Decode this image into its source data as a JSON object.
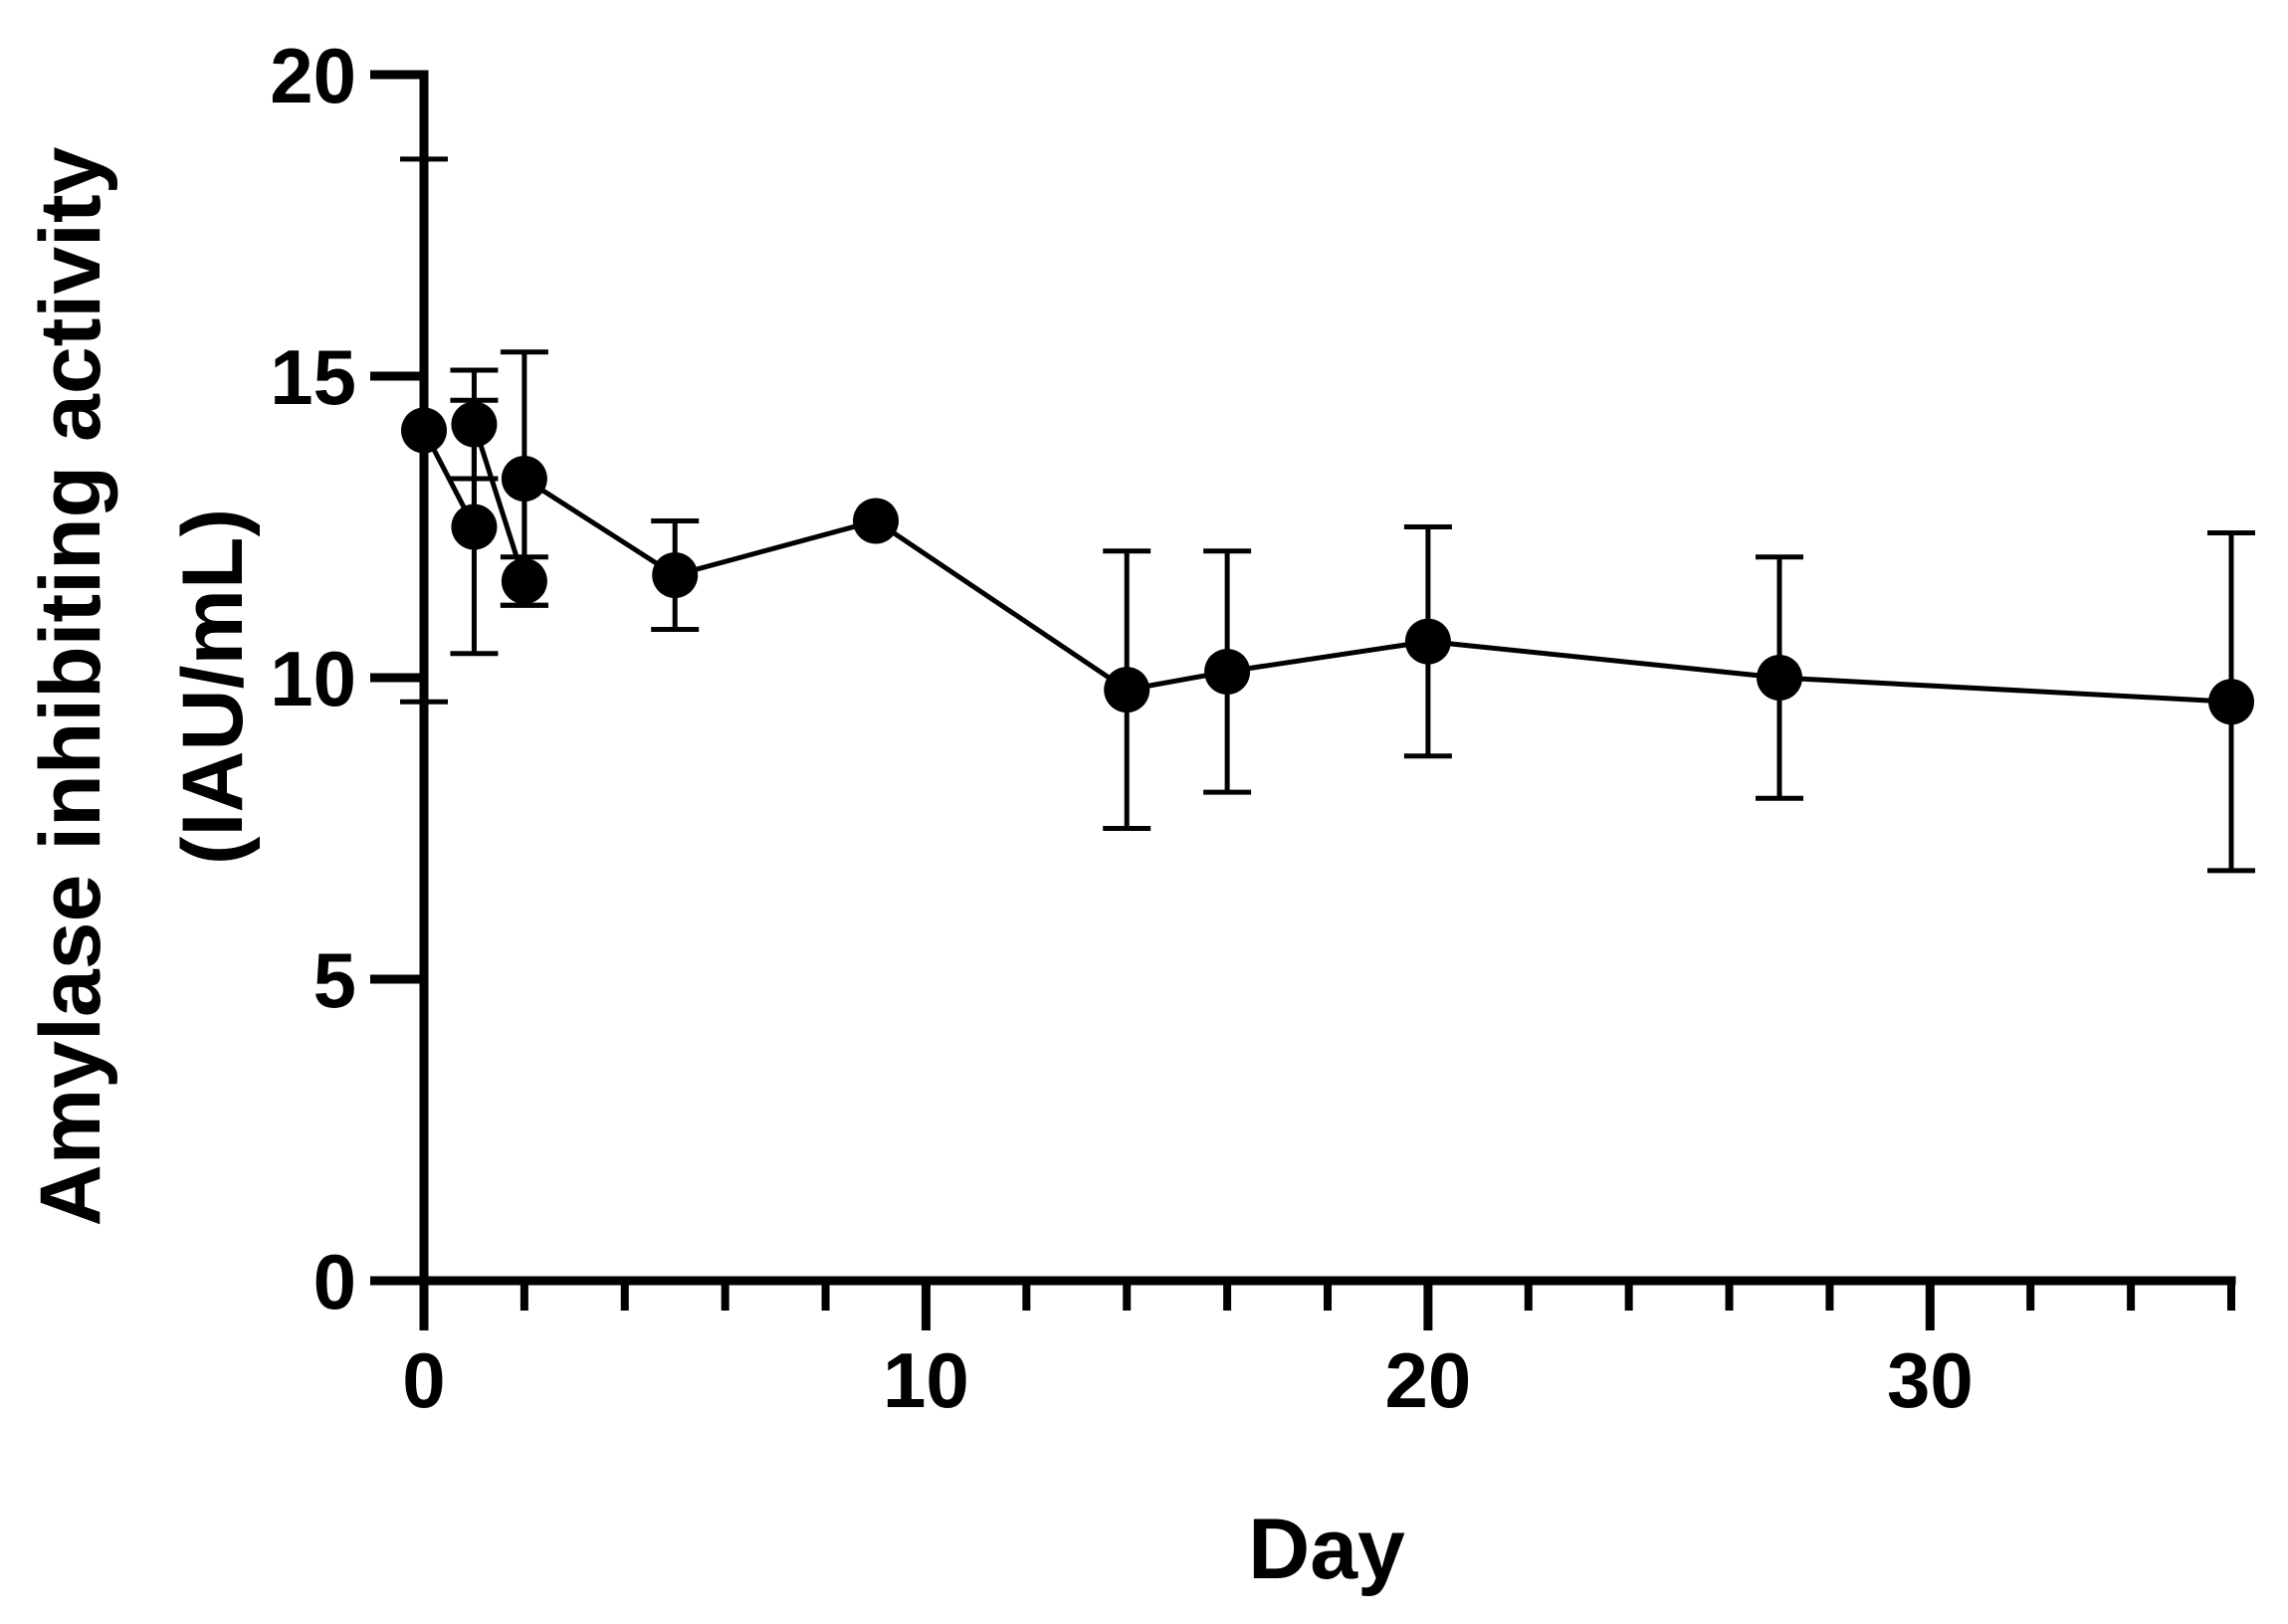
{
  "chart_data": {
    "type": "line",
    "title": "",
    "xlabel": "Day",
    "ylabel_line1": "Amylase inhibiting activity",
    "ylabel_line2": "(IAU/mL)",
    "xlim": [
      0,
      36
    ],
    "ylim": [
      0,
      20
    ],
    "x_major_ticks": [
      0,
      10,
      20,
      30
    ],
    "x_minor_step": 2,
    "y_major_ticks": [
      0,
      5,
      10,
      15,
      20
    ],
    "grid": false,
    "legend": "none",
    "color": "#000000",
    "series": [
      {
        "name": "Amylase inhibiting activity",
        "connected": true,
        "points": [
          {
            "x": 0,
            "y": 14.1,
            "err_low": 4.5,
            "err_high": 4.5
          },
          {
            "x": 1,
            "y": 12.5,
            "err_low": 2.1,
            "err_high": 2.1
          },
          {
            "x": 1,
            "y": 14.2,
            "err_low": 0.9,
            "err_high": 0.9
          },
          {
            "x": 2,
            "y": 11.6,
            "err_low": 0.4,
            "err_high": 0.4
          },
          {
            "x": 2,
            "y": 13.3,
            "err_low": 2.1,
            "err_high": 2.1
          },
          {
            "x": 5,
            "y": 11.7,
            "err_low": 0.9,
            "err_high": 0.9
          },
          {
            "x": 9,
            "y": 12.6,
            "err_low": 0,
            "err_high": 0
          },
          {
            "x": 14,
            "y": 9.8,
            "err_low": 2.3,
            "err_high": 2.3
          },
          {
            "x": 16,
            "y": 10.1,
            "err_low": 2.0,
            "err_high": 2.0
          },
          {
            "x": 20,
            "y": 10.6,
            "err_low": 1.9,
            "err_high": 1.9
          },
          {
            "x": 27,
            "y": 10.0,
            "err_low": 2.0,
            "err_high": 2.0
          },
          {
            "x": 36,
            "y": 9.6,
            "err_low": 2.8,
            "err_high": 2.8
          }
        ]
      }
    ]
  }
}
